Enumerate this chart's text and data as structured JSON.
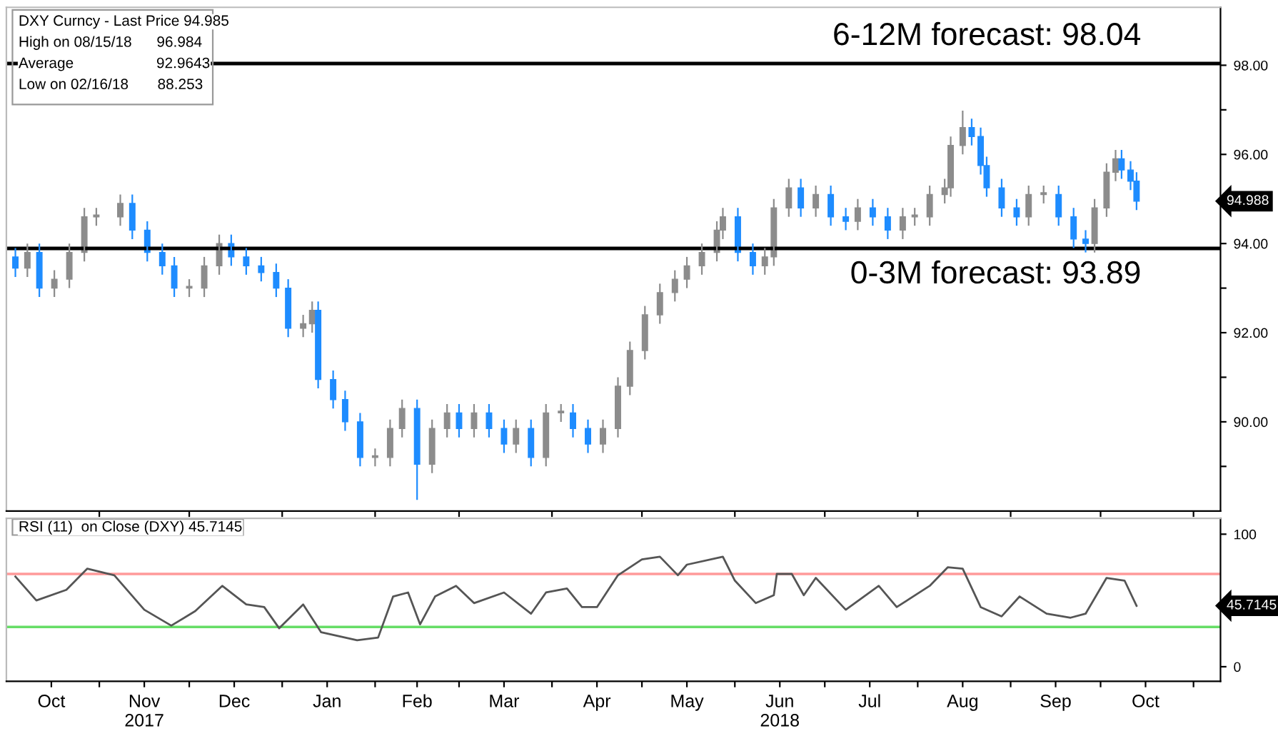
{
  "chart_data": [
    {
      "type": "candlestick",
      "tick_labels": "y",
      "grid": false,
      "x": [
        "2017-10-04",
        "2017-10-08",
        "2017-10-12",
        "2017-10-17",
        "2017-10-22",
        "2017-10-27",
        "2017-10-31",
        "2017-11-08",
        "2017-11-12",
        "2017-11-17",
        "2017-11-22",
        "2017-11-26",
        "2017-12-01",
        "2017-12-06",
        "2017-12-11",
        "2017-12-15",
        "2017-12-20",
        "2017-12-25",
        "2017-12-30",
        "2018-01-03",
        "2018-01-08",
        "2018-01-11",
        "2018-01-13",
        "2018-01-18",
        "2018-01-22",
        "2018-01-27",
        "2018-02-01",
        "2018-02-06",
        "2018-02-10",
        "2018-02-15",
        "2018-02-20",
        "2018-02-25",
        "2018-03-01",
        "2018-03-06",
        "2018-03-11",
        "2018-03-16",
        "2018-03-20",
        "2018-03-25",
        "2018-03-30",
        "2018-04-04",
        "2018-04-08",
        "2018-04-13",
        "2018-04-18",
        "2018-04-23",
        "2018-04-27",
        "2018-05-02",
        "2018-05-07",
        "2018-05-12",
        "2018-05-16",
        "2018-05-21",
        "2018-05-26",
        "2018-05-28",
        "2018-06-02",
        "2018-06-07",
        "2018-06-11",
        "2018-06-14",
        "2018-06-19",
        "2018-06-23",
        "2018-06-28",
        "2018-07-03",
        "2018-07-08",
        "2018-07-12",
        "2018-07-17",
        "2018-07-22",
        "2018-07-27",
        "2018-07-31",
        "2018-08-05",
        "2018-08-10",
        "2018-08-12",
        "2018-08-16",
        "2018-08-19",
        "2018-08-22",
        "2018-08-24",
        "2018-08-29",
        "2018-09-03",
        "2018-09-07",
        "2018-09-12",
        "2018-09-17",
        "2018-09-22",
        "2018-09-26",
        "2018-09-29",
        "2018-10-03",
        "2018-10-06",
        "2018-10-08",
        "2018-10-11",
        "2018-10-13"
      ],
      "ohlc": [
        [
          93.7,
          93.9,
          93.25,
          93.45
        ],
        [
          93.45,
          94.0,
          93.25,
          93.8
        ],
        [
          93.8,
          94.0,
          92.8,
          93.0
        ],
        [
          93.0,
          93.4,
          92.8,
          93.2
        ],
        [
          93.2,
          94.0,
          93.0,
          93.8
        ],
        [
          93.8,
          94.8,
          93.6,
          94.6
        ],
        [
          94.6,
          94.8,
          94.4,
          94.6
        ],
        [
          94.6,
          95.1,
          94.4,
          94.9
        ],
        [
          94.9,
          95.1,
          94.1,
          94.3
        ],
        [
          94.3,
          94.5,
          93.6,
          93.8
        ],
        [
          93.8,
          94.0,
          93.3,
          93.5
        ],
        [
          93.5,
          93.7,
          92.8,
          93.0
        ],
        [
          93.0,
          93.2,
          92.8,
          93.0
        ],
        [
          93.0,
          93.7,
          92.8,
          93.5
        ],
        [
          93.5,
          94.2,
          93.3,
          94.0
        ],
        [
          94.0,
          94.2,
          93.5,
          93.7
        ],
        [
          93.7,
          93.9,
          93.3,
          93.5
        ],
        [
          93.5,
          93.7,
          93.15,
          93.35
        ],
        [
          93.35,
          93.55,
          92.8,
          93.0
        ],
        [
          93.0,
          93.2,
          91.9,
          92.1
        ],
        [
          92.1,
          92.4,
          91.9,
          92.2
        ],
        [
          92.2,
          92.7,
          92.0,
          92.5
        ],
        [
          92.5,
          92.7,
          90.75,
          90.95
        ],
        [
          90.95,
          91.15,
          90.3,
          90.5
        ],
        [
          90.5,
          90.7,
          89.8,
          90.0
        ],
        [
          90.0,
          90.2,
          89.0,
          89.2
        ],
        [
          89.2,
          89.4,
          89.0,
          89.2
        ],
        [
          89.2,
          90.05,
          89.0,
          89.85
        ],
        [
          89.85,
          90.5,
          89.65,
          90.3
        ],
        [
          90.3,
          90.5,
          88.25,
          89.05
        ],
        [
          89.05,
          90.05,
          88.85,
          89.85
        ],
        [
          89.85,
          90.4,
          89.65,
          90.2
        ],
        [
          90.2,
          90.4,
          89.65,
          89.85
        ],
        [
          89.85,
          90.4,
          89.65,
          90.2
        ],
        [
          90.2,
          90.4,
          89.65,
          89.85
        ],
        [
          89.85,
          90.05,
          89.3,
          89.5
        ],
        [
          89.5,
          90.05,
          89.3,
          89.85
        ],
        [
          89.85,
          90.05,
          89.0,
          89.2
        ],
        [
          89.2,
          90.4,
          89.0,
          90.2
        ],
        [
          90.2,
          90.4,
          90.0,
          90.2
        ],
        [
          90.2,
          90.4,
          89.65,
          89.85
        ],
        [
          89.85,
          90.05,
          89.3,
          89.5
        ],
        [
          89.5,
          90.05,
          89.3,
          89.85
        ],
        [
          89.85,
          91.0,
          89.65,
          90.8
        ],
        [
          90.8,
          91.8,
          90.6,
          91.6
        ],
        [
          91.6,
          92.6,
          91.4,
          92.4
        ],
        [
          92.4,
          93.1,
          92.2,
          92.9
        ],
        [
          92.9,
          93.4,
          92.7,
          93.2
        ],
        [
          93.2,
          93.7,
          93.0,
          93.5
        ],
        [
          93.5,
          94.0,
          93.3,
          93.8
        ],
        [
          93.8,
          94.5,
          93.6,
          94.3
        ],
        [
          94.3,
          94.8,
          94.1,
          94.6
        ],
        [
          94.6,
          94.8,
          93.6,
          93.8
        ],
        [
          93.8,
          94.0,
          93.3,
          93.5
        ],
        [
          93.5,
          93.9,
          93.3,
          93.7
        ],
        [
          93.7,
          95.0,
          93.5,
          94.8
        ],
        [
          94.8,
          95.45,
          94.6,
          95.25
        ],
        [
          95.25,
          95.45,
          94.6,
          94.8
        ],
        [
          94.8,
          95.3,
          94.6,
          95.1
        ],
        [
          95.1,
          95.3,
          94.4,
          94.6
        ],
        [
          94.6,
          94.8,
          94.3,
          94.5
        ],
        [
          94.5,
          95.0,
          94.3,
          94.8
        ],
        [
          94.8,
          95.0,
          94.4,
          94.6
        ],
        [
          94.6,
          94.8,
          94.1,
          94.3
        ],
        [
          94.3,
          94.8,
          94.1,
          94.6
        ],
        [
          94.6,
          94.8,
          94.4,
          94.6
        ],
        [
          94.6,
          95.3,
          94.4,
          95.1
        ],
        [
          95.1,
          95.45,
          94.9,
          95.25
        ],
        [
          95.25,
          96.4,
          95.05,
          96.2
        ],
        [
          96.2,
          96.98,
          96.0,
          96.6
        ],
        [
          96.6,
          96.8,
          96.2,
          96.4
        ],
        [
          96.4,
          96.6,
          95.55,
          95.75
        ],
        [
          95.75,
          95.95,
          95.05,
          95.25
        ],
        [
          95.25,
          95.45,
          94.6,
          94.8
        ],
        [
          94.8,
          95.0,
          94.4,
          94.6
        ],
        [
          94.6,
          95.3,
          94.4,
          95.1
        ],
        [
          95.1,
          95.3,
          94.9,
          95.1
        ],
        [
          95.1,
          95.3,
          94.4,
          94.6
        ],
        [
          94.6,
          94.8,
          93.9,
          94.1
        ],
        [
          94.1,
          94.3,
          93.8,
          94.0
        ],
        [
          94.0,
          95.0,
          93.8,
          94.8
        ],
        [
          94.8,
          95.8,
          94.6,
          95.6
        ],
        [
          95.6,
          96.1,
          95.4,
          95.9
        ],
        [
          95.9,
          96.1,
          95.45,
          95.65
        ],
        [
          95.65,
          95.85,
          95.2,
          95.4
        ],
        [
          95.4,
          95.6,
          94.75,
          94.95
        ]
      ],
      "colors": [
        "#1e8cff",
        "#8c8c8c",
        "#1e8cff",
        "#8c8c8c",
        "#8c8c8c",
        "#8c8c8c",
        "#8c8c8c",
        "#8c8c8c",
        "#1e8cff",
        "#1e8cff",
        "#1e8cff",
        "#1e8cff",
        "#8c8c8c",
        "#8c8c8c",
        "#8c8c8c",
        "#1e8cff",
        "#1e8cff",
        "#1e8cff",
        "#1e8cff",
        "#1e8cff",
        "#8c8c8c",
        "#8c8c8c",
        "#1e8cff",
        "#1e8cff",
        "#1e8cff",
        "#1e8cff",
        "#8c8c8c",
        "#8c8c8c",
        "#8c8c8c",
        "#1e8cff",
        "#8c8c8c",
        "#8c8c8c",
        "#1e8cff",
        "#8c8c8c",
        "#1e8cff",
        "#1e8cff",
        "#8c8c8c",
        "#1e8cff",
        "#8c8c8c",
        "#8c8c8c",
        "#1e8cff",
        "#1e8cff",
        "#8c8c8c",
        "#8c8c8c",
        "#8c8c8c",
        "#8c8c8c",
        "#8c8c8c",
        "#8c8c8c",
        "#8c8c8c",
        "#8c8c8c",
        "#8c8c8c",
        "#8c8c8c",
        "#1e8cff",
        "#1e8cff",
        "#8c8c8c",
        "#8c8c8c",
        "#8c8c8c",
        "#1e8cff",
        "#8c8c8c",
        "#1e8cff",
        "#1e8cff",
        "#8c8c8c",
        "#1e8cff",
        "#1e8cff",
        "#8c8c8c",
        "#8c8c8c",
        "#8c8c8c",
        "#8c8c8c",
        "#8c8c8c",
        "#8c8c8c",
        "#1e8cff",
        "#1e8cff",
        "#1e8cff",
        "#1e8cff",
        "#1e8cff",
        "#8c8c8c",
        "#8c8c8c",
        "#1e8cff",
        "#1e8cff",
        "#1e8cff",
        "#8c8c8c",
        "#8c8c8c",
        "#8c8c8c",
        "#1e8cff",
        "#1e8cff",
        "#1e8cff"
      ],
      "xlim": [
        "2017-10-01",
        "2018-11-10"
      ],
      "ylim": [
        88.0,
        99.3
      ],
      "yticks": [
        {
          "value": 89,
          "label": null
        },
        {
          "value": 90,
          "label": "90.00"
        },
        {
          "value": 91,
          "label": null
        },
        {
          "value": 92,
          "label": "92.00"
        },
        {
          "value": 93,
          "label": null
        },
        {
          "value": 94,
          "label": "94.00"
        },
        {
          "value": 95,
          "label": null
        },
        {
          "value": 96,
          "label": "96.00"
        },
        {
          "value": 97,
          "label": null
        },
        {
          "value": 98,
          "label": "98.00"
        }
      ],
      "xticks": [
        {
          "value": "2017-11-01",
          "label": null
        },
        {
          "value": "2017-12-01",
          "label": null
        },
        {
          "value": "2018-01-01",
          "label": null
        },
        {
          "value": "2018-02-01",
          "label": null
        },
        {
          "value": "2018-03-01",
          "label": null
        },
        {
          "value": "2018-04-01",
          "label": null
        },
        {
          "value": "2018-05-01",
          "label": null
        },
        {
          "value": "2018-06-01",
          "label": null
        },
        {
          "value": "2018-07-01",
          "label": null
        },
        {
          "value": "2018-08-01",
          "label": null
        },
        {
          "value": "2018-09-01",
          "label": null
        },
        {
          "value": "2018-10-01",
          "label": null
        },
        {
          "value": "2018-11-01",
          "label": null
        }
      ],
      "ref_lines": [
        {
          "axis": "y",
          "value": 98.04,
          "label": "6-12M forecast: 98.04",
          "color": "#000000"
        },
        {
          "axis": "y",
          "value": 93.89,
          "label": "0-3M forecast: 93.89",
          "color": "#000000"
        }
      ],
      "annotations": [
        "DXY Curncy - Last Price 94.985",
        "High on 08/15/18      96.984",
        "Average                    92.9643",
        "Low on 02/16/18       88.253",
        "94.988"
      ]
    },
    {
      "type": "line",
      "grid": false,
      "series": [
        {
          "color": "#555555",
          "x": [
            "2017-10-04",
            "2017-10-11",
            "2017-10-21",
            "2017-10-28",
            "2017-11-06",
            "2017-11-16",
            "2017-11-25",
            "2017-12-03",
            "2017-12-12",
            "2017-12-20",
            "2017-12-26",
            "2017-12-31",
            "2018-01-08",
            "2018-01-14",
            "2018-01-26",
            "2018-02-02",
            "2018-02-07",
            "2018-02-12",
            "2018-02-16",
            "2018-02-21",
            "2018-02-28",
            "2018-03-06",
            "2018-03-16",
            "2018-03-25",
            "2018-03-30",
            "2018-04-06",
            "2018-04-11",
            "2018-04-16",
            "2018-04-23",
            "2018-05-01",
            "2018-05-07",
            "2018-05-13",
            "2018-05-16",
            "2018-05-28",
            "2018-06-01",
            "2018-06-08",
            "2018-06-14",
            "2018-06-15",
            "2018-06-20",
            "2018-06-24",
            "2018-06-28",
            "2018-07-08",
            "2018-07-19",
            "2018-07-25",
            "2018-08-05",
            "2018-08-11",
            "2018-08-16",
            "2018-08-22",
            "2018-08-29",
            "2018-09-04",
            "2018-09-13",
            "2018-09-21",
            "2018-09-26",
            "2018-10-03",
            "2018-10-09",
            "2018-10-13"
          ],
          "values": [
            68,
            50,
            58,
            74,
            69,
            43,
            31,
            42,
            61,
            47,
            45,
            29,
            47,
            26,
            20,
            22,
            53,
            56,
            32,
            53,
            61,
            48,
            56,
            40,
            56,
            59,
            45,
            45,
            69,
            81,
            83,
            69,
            77,
            83,
            65,
            48,
            54,
            70,
            70,
            54,
            67,
            43,
            61,
            45,
            61,
            75,
            74,
            45,
            38,
            53,
            40,
            37,
            40,
            67,
            65,
            46
          ]
        }
      ],
      "xlim": [
        "2017-10-01",
        "2018-11-10"
      ],
      "ylim": [
        -11,
        112
      ],
      "yticks": [
        0,
        100
      ],
      "xticks": [
        {
          "value": "2017-10-16",
          "label": "Oct"
        },
        {
          "value": "2017-11-01",
          "label": null
        },
        {
          "value": "2017-11-16",
          "label": "Nov\n2017"
        },
        {
          "value": "2017-12-01",
          "label": null
        },
        {
          "value": "2017-12-16",
          "label": "Dec"
        },
        {
          "value": "2018-01-01",
          "label": null
        },
        {
          "value": "2018-01-16",
          "label": "Jan"
        },
        {
          "value": "2018-02-01",
          "label": null
        },
        {
          "value": "2018-02-15",
          "label": "Feb"
        },
        {
          "value": "2018-03-01",
          "label": null
        },
        {
          "value": "2018-03-16",
          "label": "Mar"
        },
        {
          "value": "2018-04-01",
          "label": null
        },
        {
          "value": "2018-04-16",
          "label": "Apr"
        },
        {
          "value": "2018-05-01",
          "label": null
        },
        {
          "value": "2018-05-16",
          "label": "May"
        },
        {
          "value": "2018-06-01",
          "label": null
        },
        {
          "value": "2018-06-16",
          "label": "Jun\n2018"
        },
        {
          "value": "2018-07-01",
          "label": null
        },
        {
          "value": "2018-07-16",
          "label": "Jul"
        },
        {
          "value": "2018-08-01",
          "label": null
        },
        {
          "value": "2018-08-16",
          "label": "Aug"
        },
        {
          "value": "2018-09-01",
          "label": null
        },
        {
          "value": "2018-09-16",
          "label": "Sep"
        },
        {
          "value": "2018-10-01",
          "label": null
        },
        {
          "value": "2018-10-16",
          "label": "Oct"
        },
        {
          "value": "2018-11-01",
          "label": null
        }
      ],
      "ref_lines": [
        {
          "axis": "y",
          "value": 70,
          "color": "#ff9999"
        },
        {
          "axis": "y",
          "value": 30,
          "color": "#66dd66"
        }
      ],
      "annotations": [
        "RSI (11)  on Close (DXY) 45.7145",
        "45.7145"
      ]
    }
  ]
}
